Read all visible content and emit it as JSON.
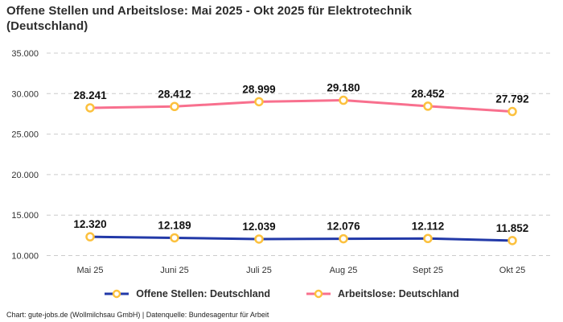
{
  "title": "Offene Stellen und Arbeitslose: Mai 2025 - Okt 2025 für Elektrotechnik (Deutschland)",
  "footer": "Chart: gute-jobs.de (Wollmilchsau GmbH) | Datenquelle: Bundesagentur für Arbeit",
  "colors": {
    "offene_stellen_line": "#2239a8",
    "arbeitslose_line": "#f8708e",
    "marker_ring": "#fcc13e",
    "marker_fill": "#ffffff",
    "gridline": "#cccccc",
    "tick_text": "#333333",
    "label_text": "#111111"
  },
  "chart_data": {
    "type": "line",
    "title": "Offene Stellen und Arbeitslose: Mai 2025 - Okt 2025 für Elektrotechnik (Deutschland)",
    "categories": [
      "Mai 25",
      "Juni 25",
      "Juli 25",
      "Aug 25",
      "Sept 25",
      "Okt 25"
    ],
    "series": [
      {
        "name": "Offene Stellen: Deutschland",
        "values": [
          12320,
          12189,
          12039,
          12076,
          12112,
          11852
        ],
        "labels": [
          "12.320",
          "12.189",
          "12.039",
          "12.076",
          "12.112",
          "11.852"
        ],
        "color": "#2239a8"
      },
      {
        "name": "Arbeitslose: Deutschland",
        "values": [
          28241,
          28412,
          28999,
          29180,
          28452,
          27792
        ],
        "labels": [
          "28.241",
          "28.412",
          "28.999",
          "29.180",
          "28.452",
          "27.792"
        ],
        "color": "#f8708e"
      }
    ],
    "ylim": [
      10000,
      35000
    ],
    "yticks": [
      10000,
      15000,
      20000,
      25000,
      30000,
      35000
    ],
    "ytick_labels": [
      "10.000",
      "15.000",
      "20.000",
      "25.000",
      "30.000",
      "35.000"
    ],
    "xlabel": "",
    "ylabel": "",
    "grid": "horizontal-dashed",
    "legend_position": "bottom",
    "marker": {
      "fill": "#ffffff",
      "stroke": "#fcc13e"
    }
  }
}
